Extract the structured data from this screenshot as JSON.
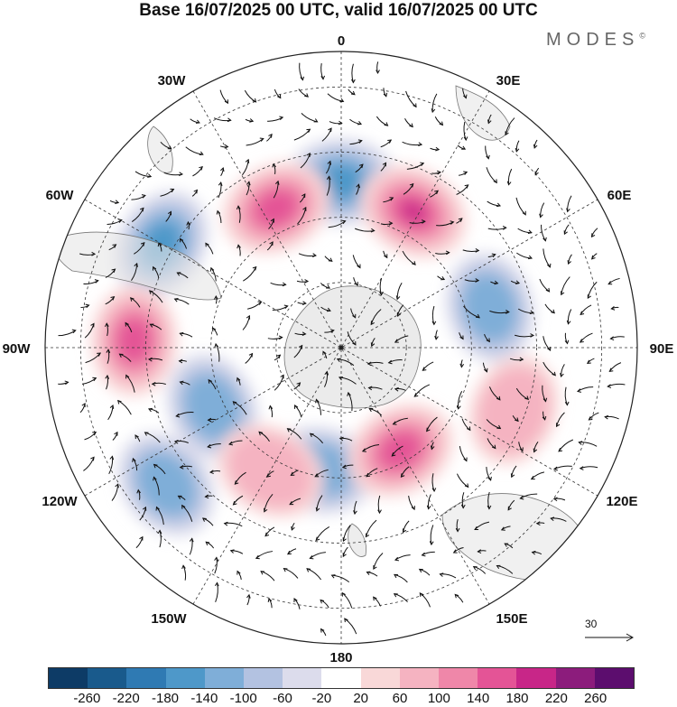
{
  "title": "Base 16/07/2025 00 UTC, valid 16/07/2025 00 UTC",
  "brand": "MODES",
  "brand_mark": "©",
  "longitude_labels": {
    "lon_0": "0",
    "lon_30e": "30E",
    "lon_60e": "60E",
    "lon_90e": "90E",
    "lon_120e": "120E",
    "lon_150e": "150E",
    "lon_180": "180",
    "lon_150w": "150W",
    "lon_120w": "120W",
    "lon_90w": "90W",
    "lon_60w": "60W",
    "lon_30w": "30W"
  },
  "vector_reference": "30",
  "colorbar": {
    "colors": [
      "#0d3b66",
      "#195a8c",
      "#2f7ab3",
      "#4e98c9",
      "#7faed8",
      "#b3c2e1",
      "#dcdcec",
      "#ffffff",
      "#f9d8d8",
      "#f5b3c1",
      "#ef87a9",
      "#e45496",
      "#c82688",
      "#8c1c7c",
      "#5c0d6e"
    ],
    "ticks": [
      "-260",
      "-220",
      "-180",
      "-140",
      "-100",
      "-60",
      "-20",
      "20",
      "60",
      "100",
      "140",
      "180",
      "220",
      "260"
    ]
  },
  "anomaly_blobs": [
    {
      "polar_r": 0.56,
      "polar_deg": 0,
      "sign": "neg",
      "level": 3
    },
    {
      "polar_r": 0.52,
      "polar_deg": 335,
      "sign": "pos",
      "level": 3
    },
    {
      "polar_r": 0.52,
      "polar_deg": 28,
      "sign": "pos",
      "level": 4
    },
    {
      "polar_r": 0.7,
      "polar_deg": 300,
      "sign": "neg",
      "level": 3
    },
    {
      "polar_r": 0.7,
      "polar_deg": 272,
      "sign": "pos",
      "level": 3
    },
    {
      "polar_r": 0.48,
      "polar_deg": 245,
      "sign": "neg",
      "level": 2
    },
    {
      "polar_r": 0.75,
      "polar_deg": 232,
      "sign": "neg",
      "level": 2
    },
    {
      "polar_r": 0.42,
      "polar_deg": 190,
      "sign": "neg",
      "level": 2
    },
    {
      "polar_r": 0.4,
      "polar_deg": 150,
      "sign": "pos",
      "level": 3
    },
    {
      "polar_r": 0.52,
      "polar_deg": 75,
      "sign": "neg",
      "level": 2
    },
    {
      "polar_r": 0.62,
      "polar_deg": 110,
      "sign": "pos",
      "level": 1
    },
    {
      "polar_r": 0.48,
      "polar_deg": 210,
      "sign": "pos",
      "level": 1
    }
  ]
}
